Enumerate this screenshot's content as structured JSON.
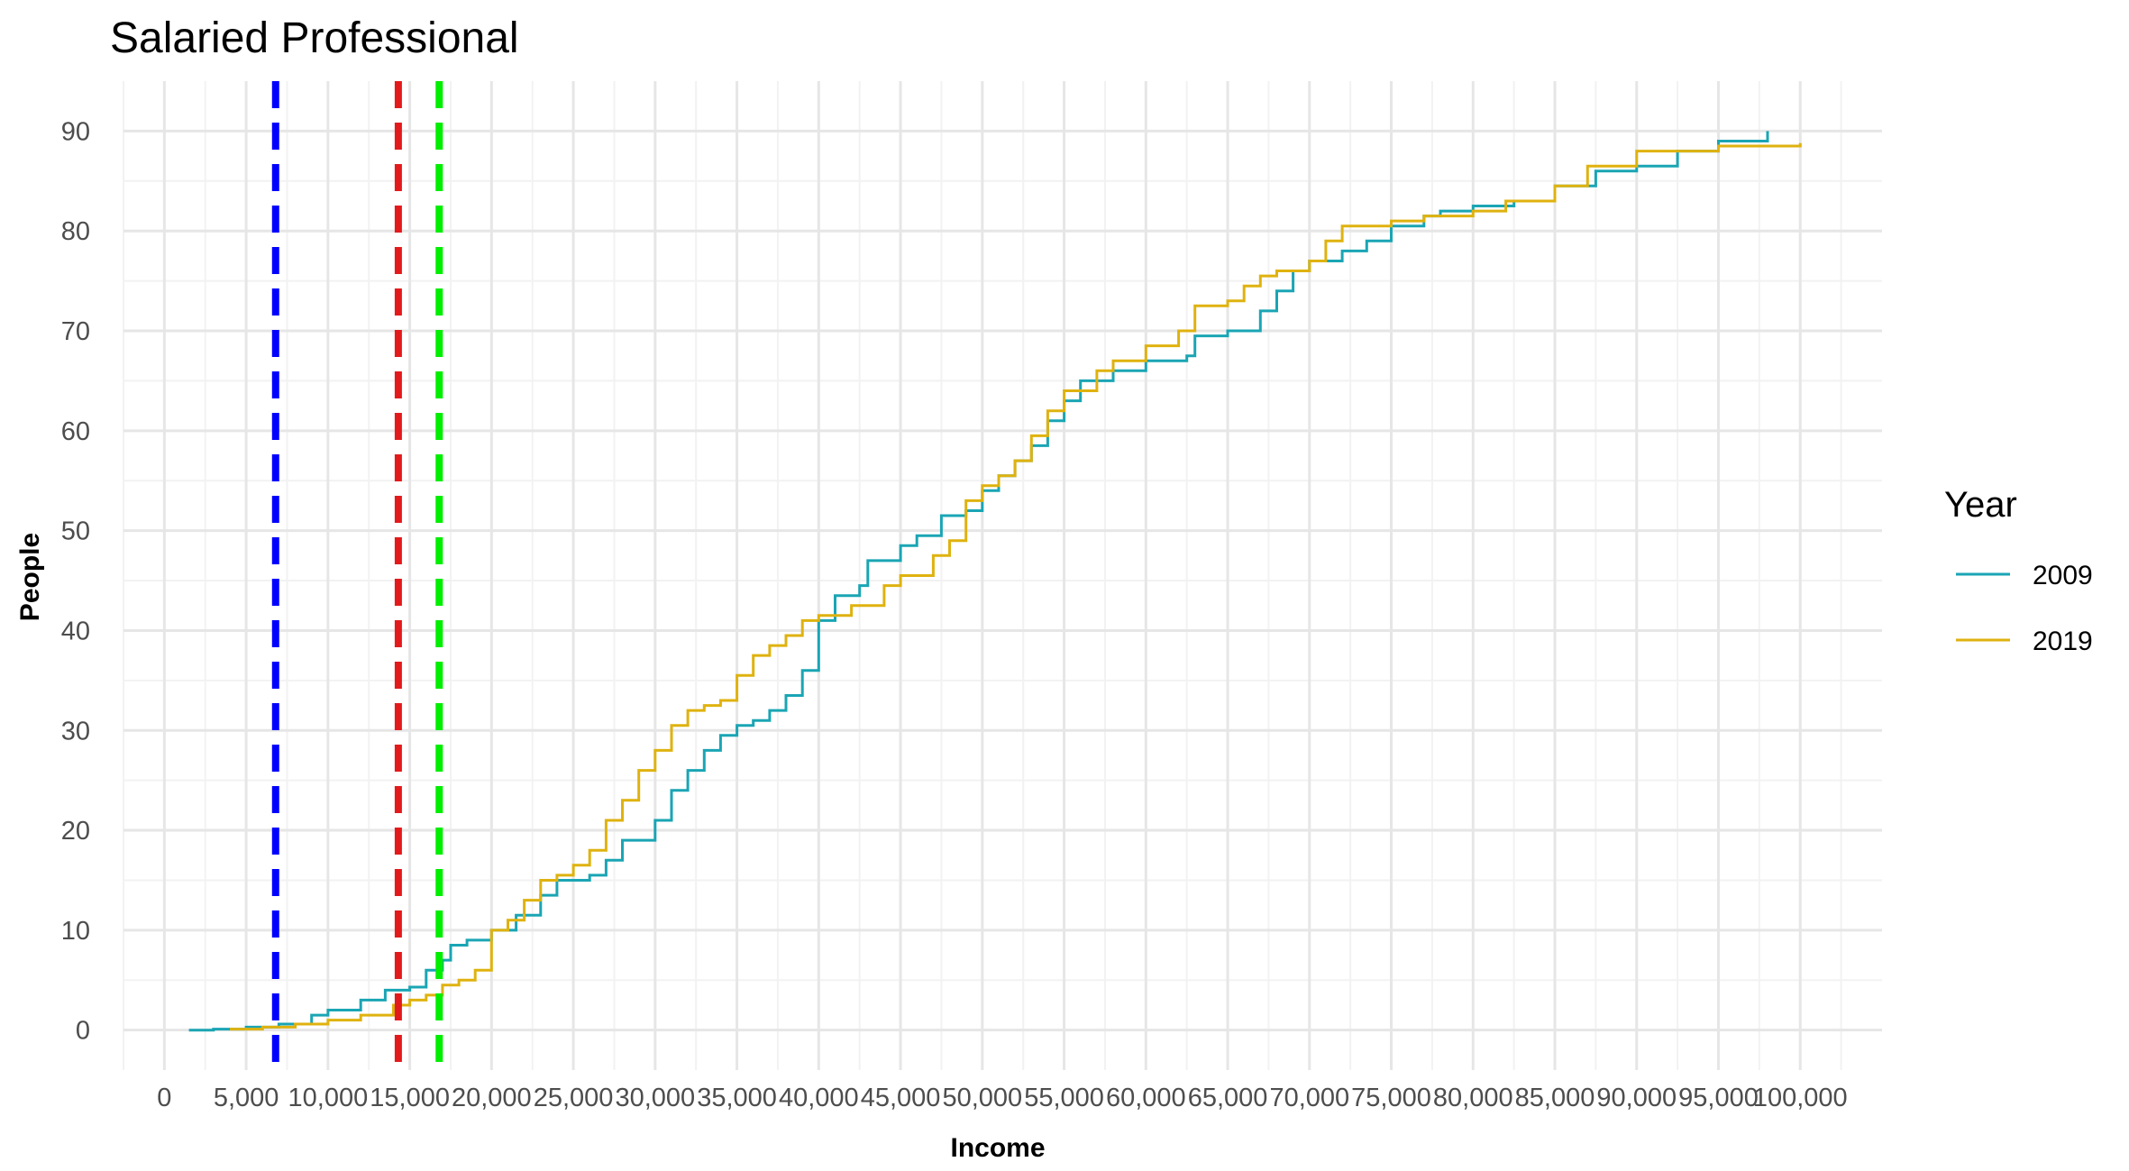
{
  "chart_data": {
    "type": "line",
    "title": "Salaried Professional",
    "xlabel": "Income",
    "ylabel": "People",
    "xlim": [
      -2500,
      105000
    ],
    "ylim": [
      -4,
      95
    ],
    "grid": true,
    "x_ticks": [
      0,
      5000,
      10000,
      15000,
      20000,
      25000,
      30000,
      35000,
      40000,
      45000,
      50000,
      55000,
      60000,
      65000,
      70000,
      75000,
      80000,
      85000,
      90000,
      95000,
      100000
    ],
    "x_tick_labels": [
      "0",
      "5,000",
      "10,000",
      "15,000",
      "20,000",
      "25,000",
      "30,000",
      "35,000",
      "40,000",
      "45,000",
      "50,000",
      "55,000",
      "60,000",
      "65,000",
      "70,000",
      "75,000",
      "80,000",
      "85,000",
      "90,000",
      "95,000",
      "100,000"
    ],
    "y_ticks": [
      0,
      10,
      20,
      30,
      40,
      50,
      60,
      70,
      80,
      90
    ],
    "y_tick_labels": [
      "0",
      "10",
      "20",
      "30",
      "40",
      "50",
      "60",
      "70",
      "80",
      "90"
    ],
    "legend": {
      "title": "Year",
      "position": "right"
    },
    "series": [
      {
        "name": "2009",
        "color": "#1aa5b4",
        "x": [
          1500,
          3000,
          5000,
          7000,
          9000,
          10000,
          12000,
          13500,
          15000,
          16000,
          17000,
          17500,
          18500,
          20000,
          21500,
          23000,
          24000,
          26000,
          27000,
          28000,
          30000,
          31000,
          32000,
          33000,
          34000,
          35000,
          36000,
          37000,
          38000,
          39000,
          40000,
          41000,
          42500,
          43000,
          45000,
          46000,
          47500,
          49000,
          50000,
          51000,
          52000,
          53000,
          54000,
          55000,
          56000,
          58000,
          60000,
          62500,
          63000,
          65000,
          67000,
          68000,
          69000,
          70000,
          72000,
          73500,
          75000,
          77000,
          78000,
          80000,
          82500,
          85000,
          87500,
          90000,
          92500,
          95000,
          98000
        ],
        "y": [
          0,
          0.1,
          0.3,
          0.6,
          1.5,
          2.0,
          3.0,
          4.0,
          4.3,
          6.0,
          7.0,
          8.5,
          9.0,
          10.0,
          11.5,
          13.5,
          15.0,
          15.5,
          17.0,
          19.0,
          21.0,
          24.0,
          26.0,
          28.0,
          29.5,
          30.5,
          31.0,
          32.0,
          33.5,
          36.0,
          41.0,
          43.5,
          44.5,
          47.0,
          48.5,
          49.5,
          51.5,
          52.0,
          54.0,
          55.5,
          57.0,
          58.5,
          61.0,
          63.0,
          65.0,
          66.0,
          67.0,
          67.5,
          69.5,
          70.0,
          72.0,
          74.0,
          76.0,
          77.0,
          78.0,
          79.0,
          80.5,
          81.5,
          82.0,
          82.5,
          83.0,
          84.5,
          86.0,
          86.5,
          88.0,
          89.0,
          90.0
        ]
      },
      {
        "name": "2019",
        "color": "#dfb20f",
        "x": [
          4000,
          6000,
          8000,
          10000,
          12000,
          14000,
          15000,
          16000,
          17000,
          18000,
          19000,
          20000,
          21000,
          22000,
          23000,
          24000,
          25000,
          26000,
          27000,
          28000,
          29000,
          30000,
          31000,
          32000,
          33000,
          34000,
          35000,
          36000,
          37000,
          38000,
          39000,
          40000,
          42000,
          44000,
          45000,
          47000,
          48000,
          49000,
          50000,
          51000,
          52000,
          53000,
          54000,
          55000,
          57000,
          58000,
          60000,
          62000,
          63000,
          65000,
          66000,
          67000,
          68000,
          70000,
          71000,
          72000,
          75000,
          77000,
          80000,
          82000,
          85000,
          87000,
          90000,
          95000,
          100000
        ],
        "y": [
          0.1,
          0.3,
          0.6,
          1.0,
          1.5,
          2.5,
          3.0,
          3.5,
          4.5,
          5.0,
          6.0,
          10.0,
          11.0,
          13.0,
          15.0,
          15.5,
          16.5,
          18.0,
          21.0,
          23.0,
          26.0,
          28.0,
          30.5,
          32.0,
          32.5,
          33.0,
          35.5,
          37.5,
          38.5,
          39.5,
          41.0,
          41.5,
          42.5,
          44.5,
          45.5,
          47.5,
          49.0,
          53.0,
          54.5,
          55.5,
          57.0,
          59.5,
          62.0,
          64.0,
          66.0,
          67.0,
          68.5,
          70.0,
          72.5,
          73.0,
          74.5,
          75.5,
          76.0,
          77.0,
          79.0,
          80.5,
          81.0,
          81.5,
          82.0,
          83.0,
          84.5,
          86.5,
          88.0,
          88.5,
          88.8
        ]
      }
    ],
    "reference_lines": [
      {
        "x": 6800,
        "color": "#0000ff",
        "style": "dashed"
      },
      {
        "x": 14300,
        "color": "#e31a1c",
        "style": "dashed"
      },
      {
        "x": 16800,
        "color": "#00ee00",
        "style": "dashed"
      }
    ]
  }
}
